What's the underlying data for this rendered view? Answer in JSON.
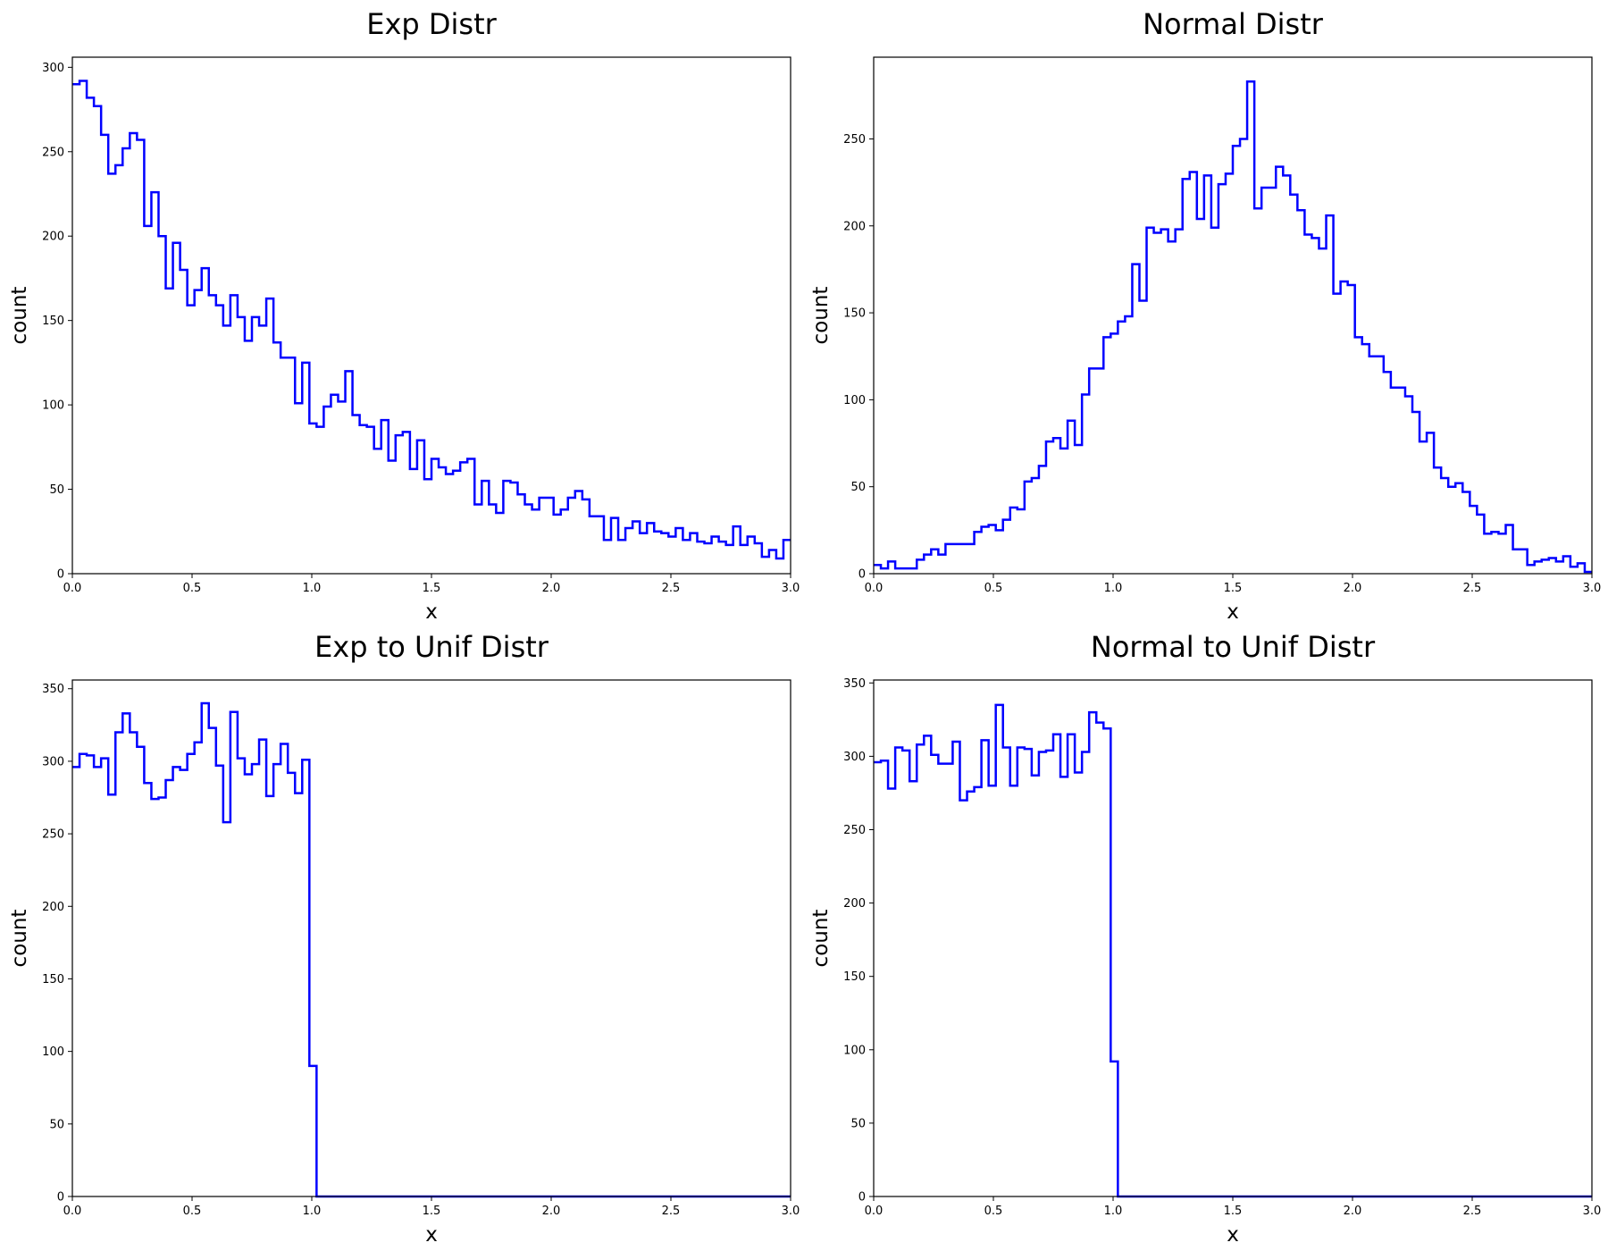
{
  "colors": {
    "line": "#0000ff",
    "axis": "#000000",
    "background": "#ffffff"
  },
  "chart_data": [
    {
      "type": "step",
      "title": "Exp Distr",
      "xlabel": "x",
      "ylabel": "count",
      "xlim": [
        0,
        3
      ],
      "ylim": [
        0,
        306
      ],
      "xticks": [
        0,
        0.5,
        1,
        1.5,
        2,
        2.5,
        3
      ],
      "xtick_labels": [
        "0.0",
        "0.5",
        "1.0",
        "1.5",
        "2.0",
        "2.5",
        "3.0"
      ],
      "yticks": [
        0,
        50,
        100,
        150,
        200,
        250,
        300
      ],
      "ytick_labels": [
        "0",
        "50",
        "100",
        "150",
        "200",
        "250",
        "300"
      ],
      "bin_width": 0.03,
      "values": [
        290,
        292,
        282,
        277,
        260,
        237,
        242,
        252,
        261,
        257,
        206,
        226,
        200,
        169,
        196,
        180,
        159,
        168,
        181,
        165,
        159,
        147,
        165,
        152,
        138,
        152,
        147,
        163,
        137,
        128,
        128,
        101,
        125,
        89,
        87,
        99,
        106,
        102,
        120,
        94,
        88,
        87,
        74,
        91,
        67,
        82,
        84,
        62,
        79,
        56,
        68,
        63,
        59,
        61,
        66,
        68,
        41,
        55,
        41,
        36,
        55,
        54,
        47,
        41,
        38,
        45,
        45,
        35,
        38,
        45,
        49,
        44,
        34,
        34,
        20,
        33,
        20,
        27,
        31,
        24,
        30,
        25,
        24,
        22,
        27,
        20,
        24,
        19,
        18,
        22,
        19,
        17,
        28,
        17,
        22,
        18,
        10,
        14,
        9,
        20
      ]
    },
    {
      "type": "step",
      "title": "Normal Distr",
      "xlabel": "x",
      "ylabel": "count",
      "xlim": [
        0,
        3
      ],
      "ylim": [
        0,
        297
      ],
      "xticks": [
        0,
        0.5,
        1,
        1.5,
        2,
        2.5,
        3
      ],
      "xtick_labels": [
        "0.0",
        "0.5",
        "1.0",
        "1.5",
        "2.0",
        "2.5",
        "3.0"
      ],
      "yticks": [
        0,
        50,
        100,
        150,
        200,
        250
      ],
      "ytick_labels": [
        "0",
        "50",
        "100",
        "150",
        "200",
        "250"
      ],
      "bin_width": 0.03,
      "values": [
        5,
        3,
        7,
        3,
        3,
        3,
        8,
        11,
        14,
        11,
        17,
        17,
        17,
        17,
        24,
        27,
        28,
        25,
        31,
        38,
        37,
        53,
        55,
        62,
        76,
        78,
        72,
        88,
        74,
        103,
        118,
        118,
        136,
        138,
        145,
        148,
        178,
        157,
        199,
        196,
        198,
        191,
        198,
        227,
        231,
        204,
        229,
        199,
        224,
        230,
        246,
        250,
        283,
        210,
        222,
        222,
        234,
        229,
        218,
        209,
        195,
        193,
        187,
        206,
        161,
        168,
        166,
        136,
        132,
        125,
        125,
        116,
        107,
        107,
        102,
        93,
        76,
        81,
        61,
        55,
        50,
        52,
        47,
        39,
        34,
        23,
        24,
        23,
        28,
        14,
        14,
        5,
        7,
        8,
        9,
        7,
        10,
        4,
        6,
        1
      ]
    },
    {
      "type": "step",
      "title": "Exp to Unif Distr",
      "xlabel": "x",
      "ylabel": "count",
      "xlim": [
        0,
        3
      ],
      "ylim": [
        0,
        356
      ],
      "xticks": [
        0,
        0.5,
        1,
        1.5,
        2,
        2.5,
        3
      ],
      "xtick_labels": [
        "0.0",
        "0.5",
        "1.0",
        "1.5",
        "2.0",
        "2.5",
        "3.0"
      ],
      "yticks": [
        0,
        50,
        100,
        150,
        200,
        250,
        300,
        350
      ],
      "ytick_labels": [
        "0",
        "50",
        "100",
        "150",
        "200",
        "250",
        "300",
        "350"
      ],
      "bin_width": 0.03,
      "values": [
        296,
        305,
        304,
        296,
        302,
        277,
        320,
        333,
        320,
        310,
        285,
        274,
        275,
        287,
        296,
        294,
        305,
        313,
        340,
        323,
        297,
        258,
        334,
        302,
        291,
        298,
        315,
        276,
        298,
        312,
        292,
        278,
        301,
        90,
        0,
        0,
        0,
        0,
        0,
        0,
        0,
        0,
        0,
        0,
        0,
        0,
        0,
        0,
        0,
        0,
        0,
        0,
        0,
        0,
        0,
        0,
        0,
        0,
        0,
        0,
        0,
        0,
        0,
        0,
        0,
        0,
        0,
        0,
        0,
        0,
        0,
        0,
        0,
        0,
        0,
        0,
        0,
        0,
        0,
        0,
        0,
        0,
        0,
        0,
        0,
        0,
        0,
        0,
        0,
        0,
        0,
        0,
        0,
        0,
        0,
        0,
        0,
        0,
        0,
        0
      ]
    },
    {
      "type": "step",
      "title": "Normal to Unif Distr",
      "xlabel": "x",
      "ylabel": "count",
      "xlim": [
        0,
        3
      ],
      "ylim": [
        0,
        352
      ],
      "xticks": [
        0,
        0.5,
        1,
        1.5,
        2,
        2.5,
        3
      ],
      "xtick_labels": [
        "0.0",
        "0.5",
        "1.0",
        "1.5",
        "2.0",
        "2.5",
        "3.0"
      ],
      "yticks": [
        0,
        50,
        100,
        150,
        200,
        250,
        300,
        350
      ],
      "ytick_labels": [
        "0",
        "50",
        "100",
        "150",
        "200",
        "250",
        "300",
        "350"
      ],
      "bin_width": 0.03,
      "values": [
        296,
        297,
        278,
        306,
        304,
        283,
        308,
        314,
        301,
        295,
        295,
        310,
        270,
        276,
        279,
        311,
        280,
        335,
        306,
        280,
        306,
        305,
        287,
        303,
        304,
        315,
        286,
        315,
        289,
        303,
        330,
        323,
        319,
        92,
        0,
        0,
        0,
        0,
        0,
        0,
        0,
        0,
        0,
        0,
        0,
        0,
        0,
        0,
        0,
        0,
        0,
        0,
        0,
        0,
        0,
        0,
        0,
        0,
        0,
        0,
        0,
        0,
        0,
        0,
        0,
        0,
        0,
        0,
        0,
        0,
        0,
        0,
        0,
        0,
        0,
        0,
        0,
        0,
        0,
        0,
        0,
        0,
        0,
        0,
        0,
        0,
        0,
        0,
        0,
        0,
        0,
        0,
        0,
        0,
        0,
        0,
        0,
        0,
        0,
        0
      ]
    }
  ]
}
